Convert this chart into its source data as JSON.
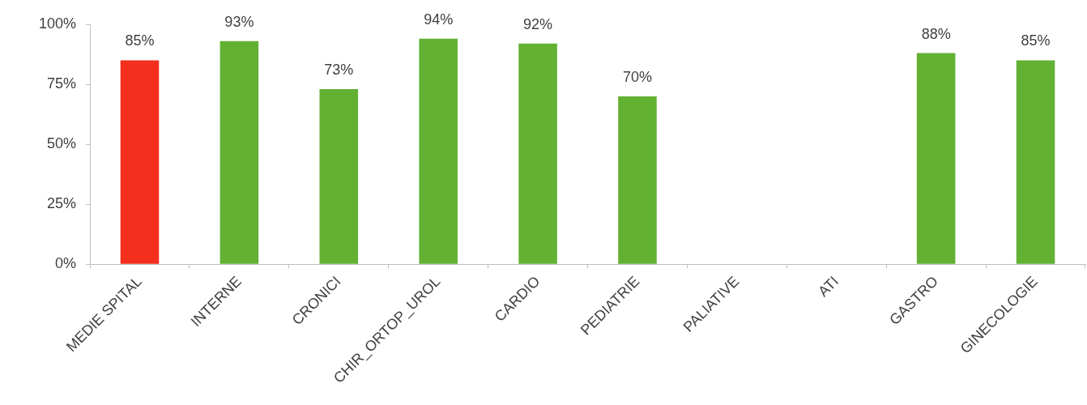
{
  "chart_data": {
    "type": "bar",
    "categories": [
      "MEDIE SPITAL",
      "INTERNE",
      "CRONICI",
      "CHIR_ORTOP_UROL",
      "CARDIO",
      "PEDIATRIE",
      "PALIATIVE",
      "ATI",
      "GASTRO",
      "GINECOLOGIE"
    ],
    "values": [
      85,
      93,
      73,
      94,
      92,
      70,
      null,
      null,
      88,
      85
    ],
    "colors": [
      "#f42f1d",
      "#62b133",
      "#62b133",
      "#62b133",
      "#62b133",
      "#62b133",
      "#62b133",
      "#62b133",
      "#62b133",
      "#62b133"
    ],
    "value_labels": [
      "85%",
      "93%",
      "73%",
      "94%",
      "92%",
      "70%",
      null,
      null,
      "88%",
      "85%"
    ],
    "ylim": [
      0,
      100
    ],
    "yticks": [
      {
        "value": 0,
        "label": "0%"
      },
      {
        "value": 25,
        "label": "25%"
      },
      {
        "value": 50,
        "label": "50%"
      },
      {
        "value": 75,
        "label": "75%"
      },
      {
        "value": 100,
        "label": "100%"
      }
    ],
    "grid": false
  }
}
